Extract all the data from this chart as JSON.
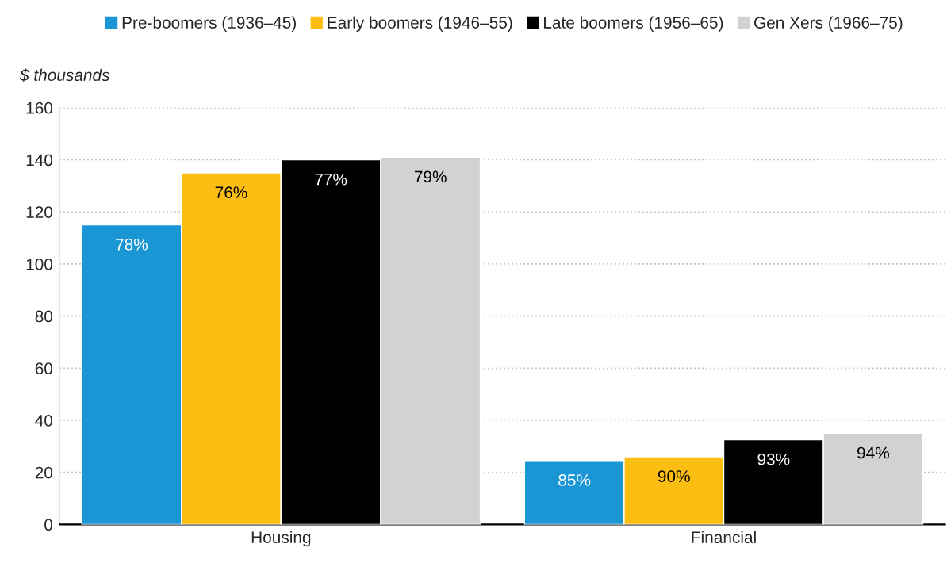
{
  "chart_data": {
    "type": "bar",
    "ylabel": "$ thousands",
    "categories": [
      "Housing",
      "Financial"
    ],
    "series": [
      {
        "name": "Pre-boomers (1936–45)",
        "color": "#1a96d4",
        "values": [
          115,
          24.5
        ]
      },
      {
        "name": "Early boomers (1946–55)",
        "color": "#fdbe14",
        "values": [
          135,
          26
        ]
      },
      {
        "name": "Late boomers (1956–65)",
        "color": "#000000",
        "values": [
          140,
          32.5
        ]
      },
      {
        "name": "Gen Xers (1966–75)",
        "color": "#d2d2d2",
        "values": [
          141,
          35
        ]
      }
    ],
    "annotations": [
      "78%",
      "85%",
      "76%",
      "90%",
      "77%",
      "93%",
      "79%",
      "94%"
    ],
    "ylim": [
      0,
      160
    ],
    "yticks": [
      0,
      20,
      40,
      60,
      80,
      100,
      120,
      140,
      160
    ],
    "grid": "y",
    "legend": "top",
    "marker": "square"
  }
}
